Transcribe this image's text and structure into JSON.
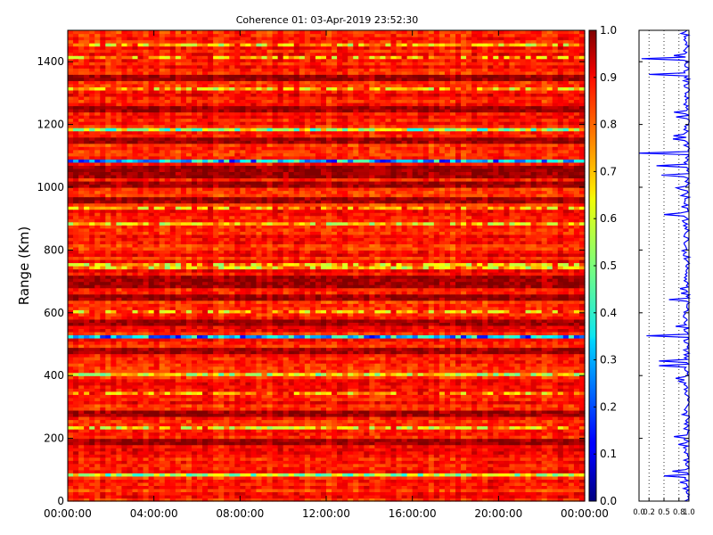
{
  "chart_data": [
    {
      "type": "heatmap",
      "title": "Coherence 01: 03-Apr-2019 23:52:30",
      "ylabel": "Range (Km)",
      "xlabel": "",
      "x_ticks": [
        "00:00:00",
        "04:00:00",
        "08:00:00",
        "12:00:00",
        "16:00:00",
        "20:00:00",
        "00:00:00"
      ],
      "y_ticks": [
        0,
        200,
        400,
        600,
        800,
        1000,
        1200,
        1400
      ],
      "ylim": [
        0,
        1500
      ],
      "xlim_hours": [
        0,
        24
      ],
      "colormap": "jet",
      "value_range": [
        0.0,
        1.0
      ],
      "mean_value": 0.85,
      "low_coherence_bands_km": [
        {
          "range_km": 1080,
          "value": 0.3
        },
        {
          "range_km": 525,
          "value": 0.3
        },
        {
          "range_km": 1188,
          "value": 0.55
        },
        {
          "range_km": 85,
          "value": 0.55
        },
        {
          "range_km": 400,
          "value": 0.6
        },
        {
          "range_km": 745,
          "value": 0.68
        },
        {
          "range_km": 755,
          "value": 0.7
        },
        {
          "range_km": 1450,
          "value": 0.7
        },
        {
          "range_km": 1317,
          "value": 0.7
        },
        {
          "range_km": 880,
          "value": 0.68
        },
        {
          "range_km": 230,
          "value": 0.7
        },
        {
          "range_km": 608,
          "value": 0.72
        },
        {
          "range_km": 340,
          "value": 0.74
        },
        {
          "range_km": 1413,
          "value": 0.74
        },
        {
          "range_km": 930,
          "value": 0.74
        }
      ],
      "high_coherence_bands_km": [
        1030,
        1050,
        1000,
        950,
        700,
        680,
        1340,
        1140,
        1245,
        270,
        180,
        470,
        640,
        560
      ]
    },
    {
      "type": "colorbar",
      "ticks": [
        "0.0",
        "0.1",
        "0.2",
        "0.3",
        "0.4",
        "0.5",
        "0.6",
        "0.7",
        "0.8",
        "0.9",
        "1.0"
      ],
      "range": [
        0.0,
        1.0
      ],
      "colormap": "jet"
    },
    {
      "type": "line",
      "description_type": "range profile",
      "x_ticks": [
        "0.0",
        "0.2",
        "0.5",
        "0.8",
        "1.0"
      ],
      "xlim": [
        0,
        1
      ],
      "ylim": [
        0,
        1500
      ],
      "gridlines_x": [
        0.2,
        0.5,
        0.8
      ],
      "line_color": "#0000ff",
      "mean_value": 0.95,
      "dips": [
        {
          "range_km": 1410,
          "value": 0.05
        },
        {
          "range_km": 1360,
          "value": 0.2
        },
        {
          "range_km": 1110,
          "value": 0.0
        },
        {
          "range_km": 1070,
          "value": 0.35
        },
        {
          "range_km": 1040,
          "value": 0.45
        },
        {
          "range_km": 912,
          "value": 0.5
        },
        {
          "range_km": 640,
          "value": 0.6
        },
        {
          "range_km": 527,
          "value": 0.15
        },
        {
          "range_km": 445,
          "value": 0.4
        },
        {
          "range_km": 430,
          "value": 0.4
        },
        {
          "range_km": 80,
          "value": 0.5
        },
        {
          "range_km": 1240,
          "value": 0.7
        },
        {
          "range_km": 1000,
          "value": 0.75
        },
        {
          "range_km": 205,
          "value": 0.7
        }
      ]
    }
  ]
}
